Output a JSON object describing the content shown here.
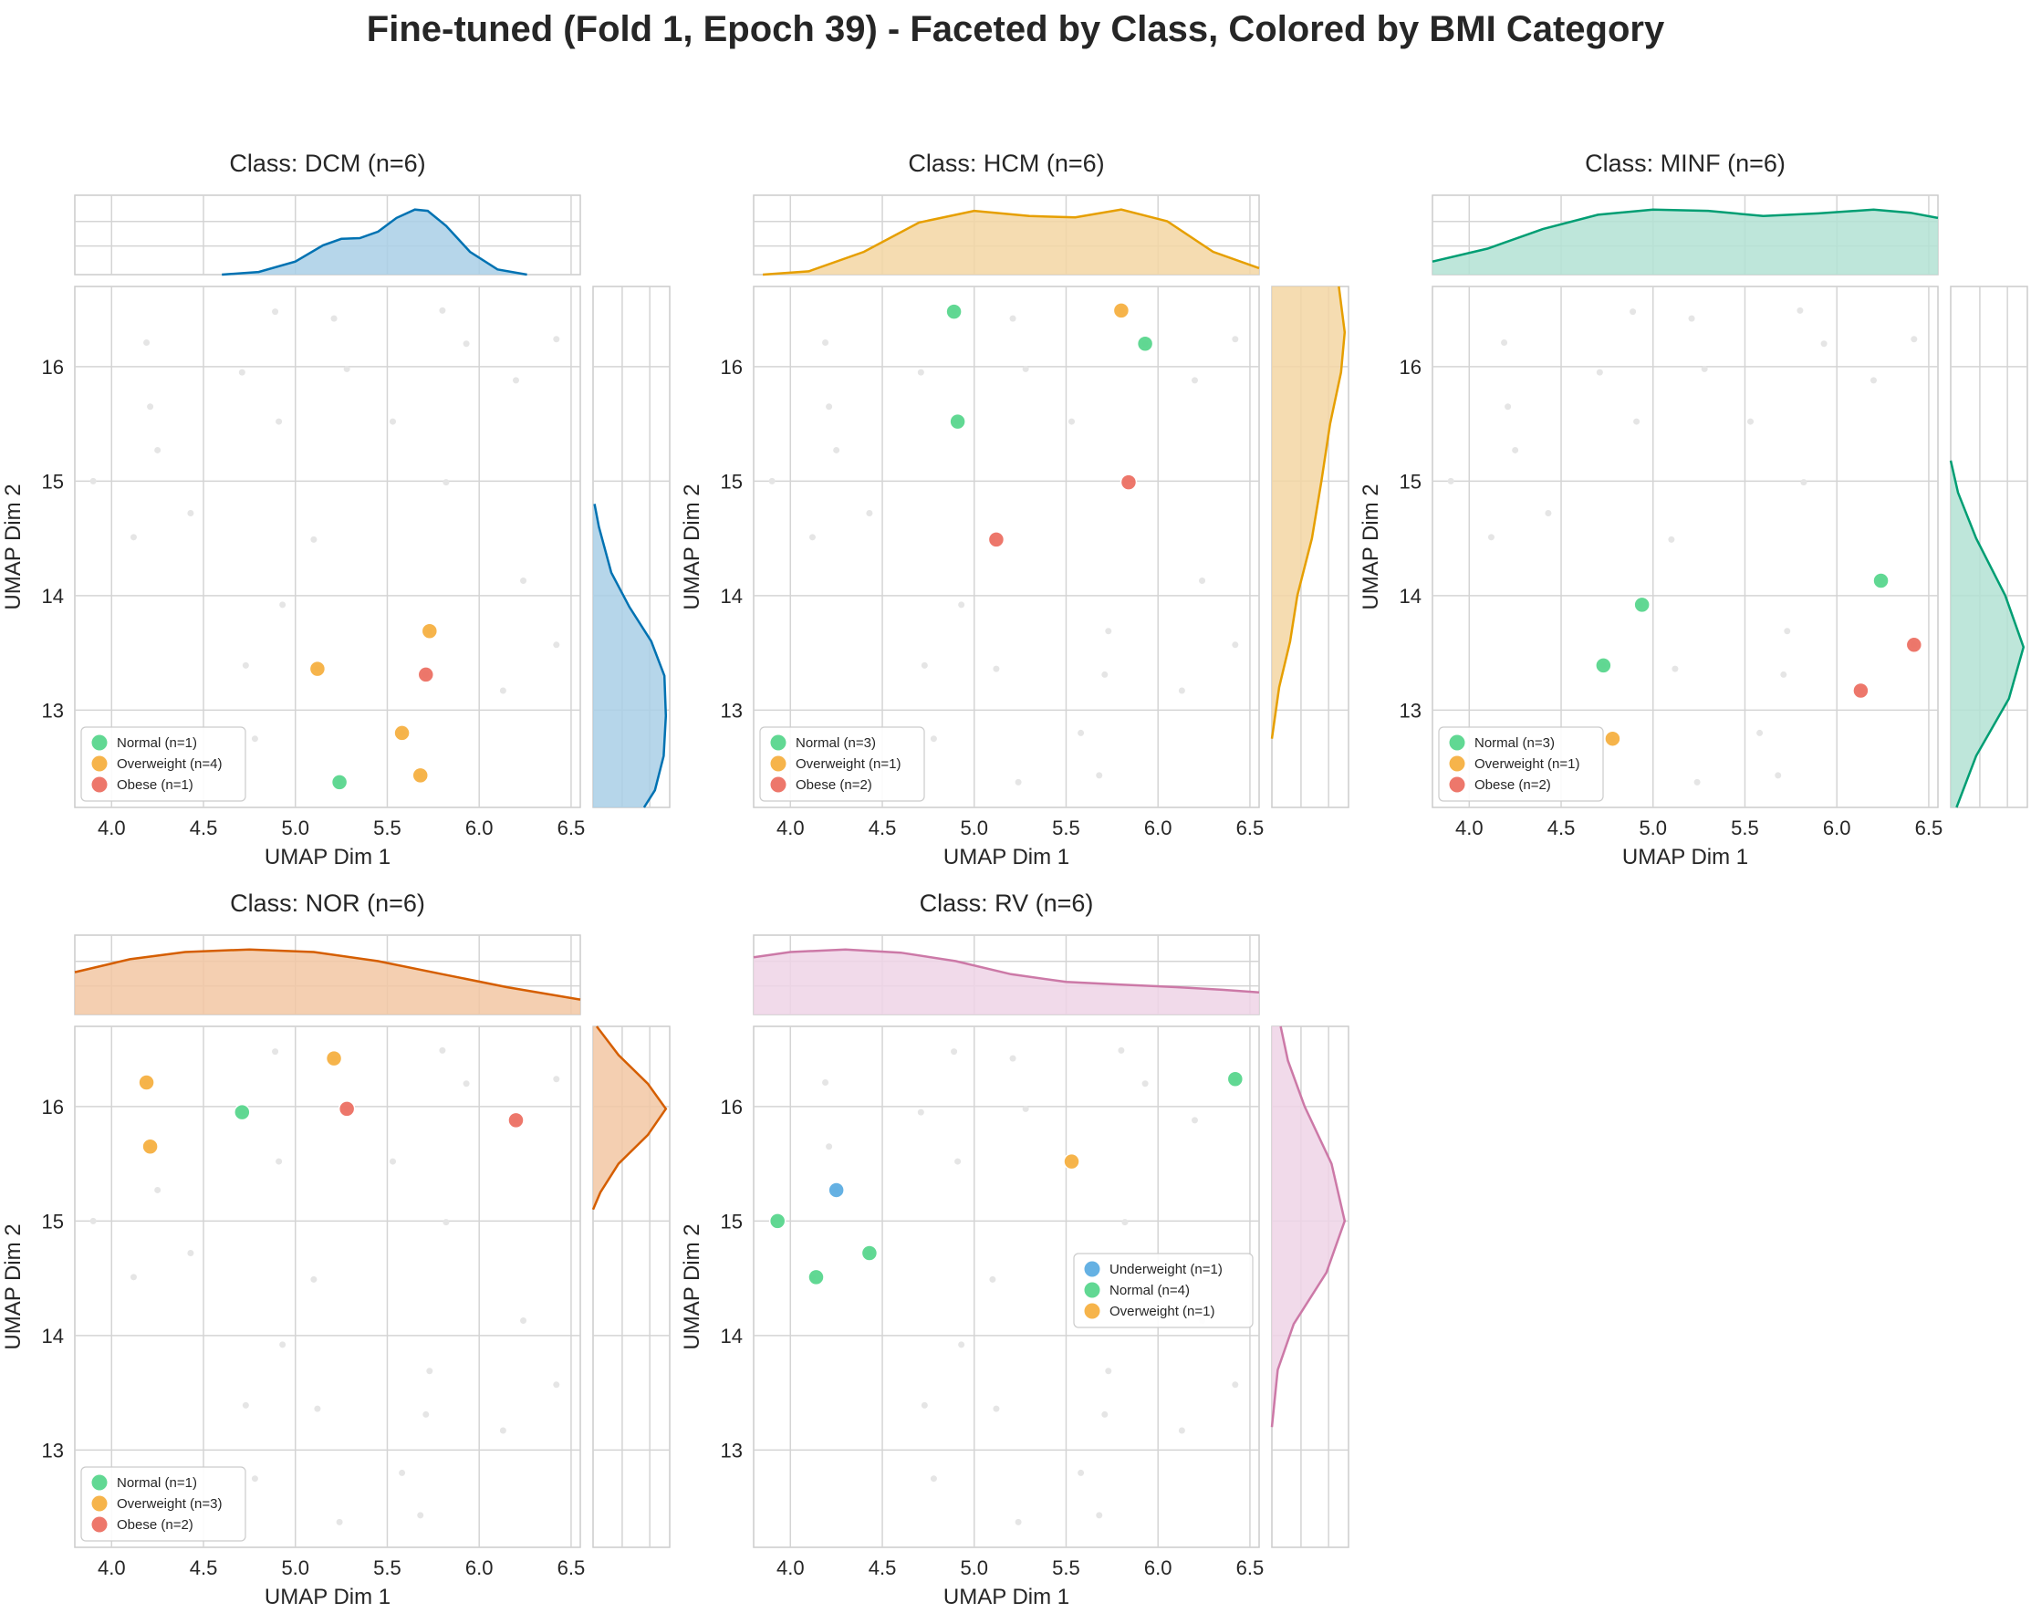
{
  "title": "Fine-tuned (Fold 1, Epoch 39) - Faceted by Class, Colored by BMI Category",
  "colors": {
    "Underweight": "#5dade2",
    "Normal": "#58d68d",
    "Overweight": "#f5b041",
    "Obese": "#ec7063",
    "background_points": "#e5e5e5",
    "grid": "#d4d4d4",
    "spine": "#cccccc"
  },
  "chart_data": [
    {
      "type": "scatter",
      "panel": "DCM",
      "title": "Class: DCM (n=6)",
      "xlabel": "UMAP Dim 1",
      "ylabel": "UMAP Dim 2",
      "xlim": [
        3.8,
        6.55
      ],
      "ylim": [
        12.15,
        16.7
      ],
      "xticks": [
        "4.0",
        "4.5",
        "5.0",
        "5.5",
        "6.0",
        "6.5"
      ],
      "yticks": [
        "13",
        "14",
        "15",
        "16"
      ],
      "kde_color": "#0072b2",
      "kde_fill": "#a9cfe6",
      "legend_position": "lower left",
      "legend": [
        "Normal (n=1)",
        "Overweight (n=4)",
        "Obese (n=1)"
      ],
      "series": [
        {
          "name": "Normal",
          "x": [
            5.24
          ],
          "y": [
            12.37
          ]
        },
        {
          "name": "Overweight",
          "x": [
            5.12,
            5.58,
            5.68,
            5.73
          ],
          "y": [
            13.36,
            12.8,
            12.43,
            13.69
          ]
        },
        {
          "name": "Obese",
          "x": [
            5.71
          ],
          "y": [
            13.31
          ]
        }
      ],
      "x_kde": [
        [
          4.6,
          0.0
        ],
        [
          4.8,
          0.04
        ],
        [
          5.0,
          0.2
        ],
        [
          5.15,
          0.45
        ],
        [
          5.25,
          0.55
        ],
        [
          5.35,
          0.56
        ],
        [
          5.45,
          0.66
        ],
        [
          5.55,
          0.87
        ],
        [
          5.65,
          1.0
        ],
        [
          5.72,
          0.98
        ],
        [
          5.82,
          0.75
        ],
        [
          5.95,
          0.35
        ],
        [
          6.1,
          0.08
        ],
        [
          6.26,
          0.0
        ]
      ],
      "y_kde": [
        [
          14.8,
          0.02
        ],
        [
          14.6,
          0.08
        ],
        [
          14.2,
          0.25
        ],
        [
          13.9,
          0.5
        ],
        [
          13.6,
          0.8
        ],
        [
          13.3,
          0.98
        ],
        [
          12.95,
          1.0
        ],
        [
          12.6,
          0.97
        ],
        [
          12.3,
          0.85
        ],
        [
          12.15,
          0.7
        ]
      ]
    },
    {
      "type": "scatter",
      "panel": "HCM",
      "title": "Class: HCM (n=6)",
      "xlabel": "UMAP Dim 1",
      "ylabel": "UMAP Dim 2",
      "xlim": [
        3.8,
        6.55
      ],
      "ylim": [
        12.15,
        16.7
      ],
      "xticks": [
        "4.0",
        "4.5",
        "5.0",
        "5.5",
        "6.0",
        "6.5"
      ],
      "yticks": [
        "13",
        "14",
        "15",
        "16"
      ],
      "kde_color": "#e69f00",
      "kde_fill": "#f3d6a3",
      "legend_position": "lower left",
      "legend": [
        "Normal (n=3)",
        "Overweight (n=1)",
        "Obese (n=2)"
      ],
      "series": [
        {
          "name": "Normal",
          "x": [
            4.89,
            4.91,
            5.93
          ],
          "y": [
            16.48,
            15.52,
            16.2
          ]
        },
        {
          "name": "Overweight",
          "x": [
            5.8
          ],
          "y": [
            16.49
          ]
        },
        {
          "name": "Obese",
          "x": [
            5.12,
            5.84
          ],
          "y": [
            14.49,
            14.99
          ]
        }
      ],
      "x_kde": [
        [
          3.85,
          0.0
        ],
        [
          4.1,
          0.05
        ],
        [
          4.4,
          0.35
        ],
        [
          4.7,
          0.8
        ],
        [
          5.0,
          0.98
        ],
        [
          5.3,
          0.9
        ],
        [
          5.55,
          0.88
        ],
        [
          5.8,
          1.0
        ],
        [
          6.05,
          0.82
        ],
        [
          6.3,
          0.35
        ],
        [
          6.55,
          0.1
        ]
      ],
      "y_kde": [
        [
          12.75,
          0.0
        ],
        [
          13.2,
          0.1
        ],
        [
          13.6,
          0.25
        ],
        [
          14.0,
          0.35
        ],
        [
          14.5,
          0.55
        ],
        [
          15.0,
          0.68
        ],
        [
          15.5,
          0.8
        ],
        [
          15.95,
          0.95
        ],
        [
          16.3,
          1.0
        ],
        [
          16.7,
          0.92
        ]
      ]
    },
    {
      "type": "scatter",
      "panel": "MINF",
      "title": "Class: MINF (n=6)",
      "xlabel": "UMAP Dim 1",
      "ylabel": "UMAP Dim 2",
      "xlim": [
        3.8,
        6.55
      ],
      "ylim": [
        12.15,
        16.7
      ],
      "xticks": [
        "4.0",
        "4.5",
        "5.0",
        "5.5",
        "6.0",
        "6.5"
      ],
      "yticks": [
        "13",
        "14",
        "15",
        "16"
      ],
      "kde_color": "#009e73",
      "kde_fill": "#b3e2d4",
      "legend_position": "lower left",
      "legend": [
        "Normal (n=3)",
        "Overweight (n=1)",
        "Obese (n=2)"
      ],
      "series": [
        {
          "name": "Normal",
          "x": [
            4.73,
            4.94,
            6.24
          ],
          "y": [
            13.39,
            13.92,
            14.13
          ]
        },
        {
          "name": "Overweight",
          "x": [
            4.78
          ],
          "y": [
            12.75
          ]
        },
        {
          "name": "Obese",
          "x": [
            6.13,
            6.42
          ],
          "y": [
            13.17,
            13.57
          ]
        }
      ],
      "x_kde": [
        [
          3.8,
          0.2
        ],
        [
          4.1,
          0.4
        ],
        [
          4.4,
          0.7
        ],
        [
          4.7,
          0.92
        ],
        [
          5.0,
          1.0
        ],
        [
          5.3,
          0.98
        ],
        [
          5.6,
          0.9
        ],
        [
          5.9,
          0.94
        ],
        [
          6.2,
          1.0
        ],
        [
          6.4,
          0.95
        ],
        [
          6.55,
          0.87
        ]
      ],
      "y_kde": [
        [
          15.18,
          0.0
        ],
        [
          14.9,
          0.1
        ],
        [
          14.5,
          0.35
        ],
        [
          14.0,
          0.75
        ],
        [
          13.55,
          1.0
        ],
        [
          13.1,
          0.8
        ],
        [
          12.6,
          0.35
        ],
        [
          12.15,
          0.08
        ]
      ]
    },
    {
      "type": "scatter",
      "panel": "NOR",
      "title": "Class: NOR (n=6)",
      "xlabel": "UMAP Dim 1",
      "ylabel": "UMAP Dim 2",
      "xlim": [
        3.8,
        6.55
      ],
      "ylim": [
        12.15,
        16.7
      ],
      "xticks": [
        "4.0",
        "4.5",
        "5.0",
        "5.5",
        "6.0",
        "6.5"
      ],
      "yticks": [
        "13",
        "14",
        "15",
        "16"
      ],
      "kde_color": "#d55e00",
      "kde_fill": "#f2c7a3",
      "legend_position": "lower left",
      "legend": [
        "Normal (n=1)",
        "Overweight (n=3)",
        "Obese (n=2)"
      ],
      "series": [
        {
          "name": "Normal",
          "x": [
            4.71
          ],
          "y": [
            15.95
          ]
        },
        {
          "name": "Overweight",
          "x": [
            4.19,
            4.21,
            5.21
          ],
          "y": [
            16.21,
            15.65,
            16.42
          ]
        },
        {
          "name": "Obese",
          "x": [
            5.28,
            6.2
          ],
          "y": [
            15.98,
            15.88
          ]
        }
      ],
      "x_kde": [
        [
          3.8,
          0.65
        ],
        [
          4.1,
          0.85
        ],
        [
          4.4,
          0.96
        ],
        [
          4.75,
          1.0
        ],
        [
          5.1,
          0.96
        ],
        [
          5.45,
          0.82
        ],
        [
          5.8,
          0.62
        ],
        [
          6.15,
          0.42
        ],
        [
          6.55,
          0.23
        ]
      ],
      "y_kde": [
        [
          16.7,
          0.05
        ],
        [
          16.45,
          0.35
        ],
        [
          16.2,
          0.75
        ],
        [
          15.98,
          1.0
        ],
        [
          15.75,
          0.75
        ],
        [
          15.5,
          0.35
        ],
        [
          15.25,
          0.1
        ],
        [
          15.1,
          0.0
        ]
      ]
    },
    {
      "type": "scatter",
      "panel": "RV",
      "title": "Class: RV (n=6)",
      "xlabel": "UMAP Dim 1",
      "ylabel": "UMAP Dim 2",
      "xlim": [
        3.8,
        6.55
      ],
      "ylim": [
        12.15,
        16.7
      ],
      "xticks": [
        "4.0",
        "4.5",
        "5.0",
        "5.5",
        "6.0",
        "6.5"
      ],
      "yticks": [
        "13",
        "14",
        "15",
        "16"
      ],
      "kde_color": "#cc79a7",
      "kde_fill": "#efd3e6",
      "legend_position": "center right",
      "legend": [
        "Underweight (n=1)",
        "Normal (n=4)",
        "Overweight (n=1)"
      ],
      "series": [
        {
          "name": "Underweight",
          "x": [
            4.25
          ],
          "y": [
            15.27
          ]
        },
        {
          "name": "Normal",
          "x": [
            3.93,
            4.14,
            4.43,
            6.42
          ],
          "y": [
            15.0,
            14.51,
            14.72,
            16.24
          ]
        },
        {
          "name": "Overweight",
          "x": [
            5.53
          ],
          "y": [
            15.52
          ]
        }
      ],
      "x_kde": [
        [
          3.8,
          0.88
        ],
        [
          4.0,
          0.96
        ],
        [
          4.3,
          1.0
        ],
        [
          4.6,
          0.95
        ],
        [
          4.9,
          0.82
        ],
        [
          5.2,
          0.62
        ],
        [
          5.5,
          0.5
        ],
        [
          5.8,
          0.46
        ],
        [
          6.1,
          0.42
        ],
        [
          6.35,
          0.38
        ],
        [
          6.55,
          0.34
        ]
      ],
      "y_kde": [
        [
          16.7,
          0.12
        ],
        [
          16.4,
          0.22
        ],
        [
          16.0,
          0.45
        ],
        [
          15.5,
          0.82
        ],
        [
          15.0,
          1.0
        ],
        [
          14.55,
          0.75
        ],
        [
          14.1,
          0.3
        ],
        [
          13.7,
          0.08
        ],
        [
          13.2,
          0.0
        ]
      ]
    }
  ],
  "background_points": {
    "x": [
      3.9,
      4.12,
      4.19,
      4.21,
      4.25,
      4.43,
      4.71,
      4.73,
      4.78,
      4.89,
      4.91,
      4.93,
      5.1,
      5.12,
      5.21,
      5.24,
      5.28,
      5.53,
      5.58,
      5.68,
      5.71,
      5.73,
      5.8,
      5.82,
      5.93,
      6.13,
      6.2,
      6.24,
      6.42,
      6.42
    ],
    "y": [
      15.0,
      14.51,
      16.21,
      15.65,
      15.27,
      14.72,
      15.95,
      13.39,
      12.75,
      16.48,
      15.52,
      13.92,
      14.49,
      13.36,
      16.42,
      12.37,
      15.98,
      15.52,
      12.8,
      12.43,
      13.31,
      13.69,
      16.49,
      14.99,
      16.2,
      13.17,
      15.88,
      14.13,
      13.57,
      16.24
    ]
  }
}
